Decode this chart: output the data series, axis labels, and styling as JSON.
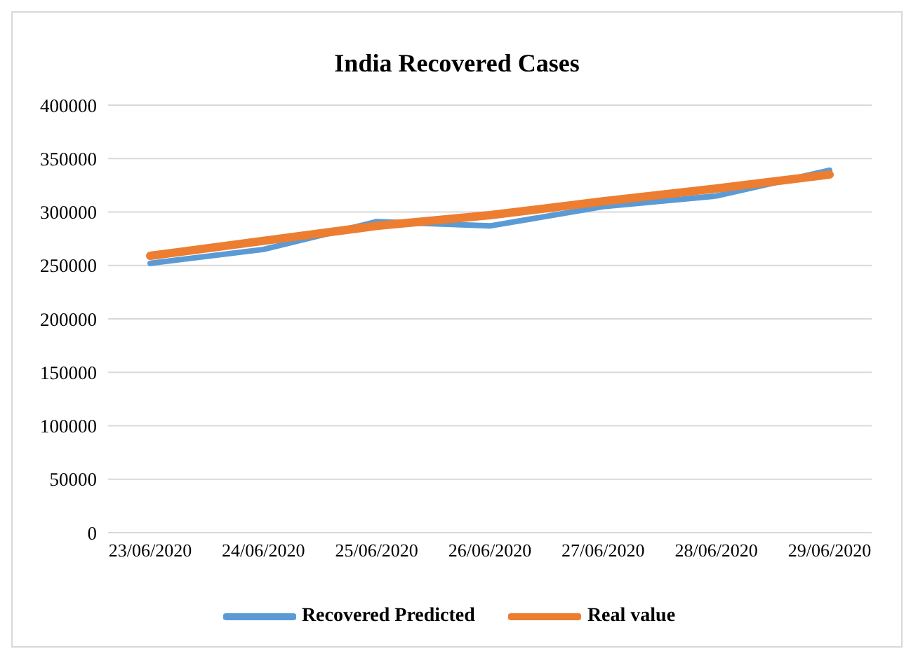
{
  "chart_data": {
    "type": "line",
    "title": "India Recovered Cases",
    "categories": [
      "23/06/2020",
      "24/06/2020",
      "25/06/2020",
      "26/06/2020",
      "27/06/2020",
      "28/06/2020",
      "29/06/2020"
    ],
    "series": [
      {
        "name": "Recovered Predicted",
        "color": "#5b9bd5",
        "values": [
          252000,
          265000,
          291000,
          287000,
          305000,
          315000,
          339000
        ]
      },
      {
        "name": "Real value",
        "color": "#ed7d31",
        "values": [
          259000,
          273000,
          287000,
          297000,
          310000,
          322000,
          335000
        ]
      }
    ],
    "ylim": [
      0,
      400000
    ],
    "yticks": [
      0,
      50000,
      100000,
      150000,
      200000,
      250000,
      300000,
      350000,
      400000
    ],
    "grid": "y",
    "legend": "bottom",
    "marker": "none",
    "line_style": "solid"
  }
}
